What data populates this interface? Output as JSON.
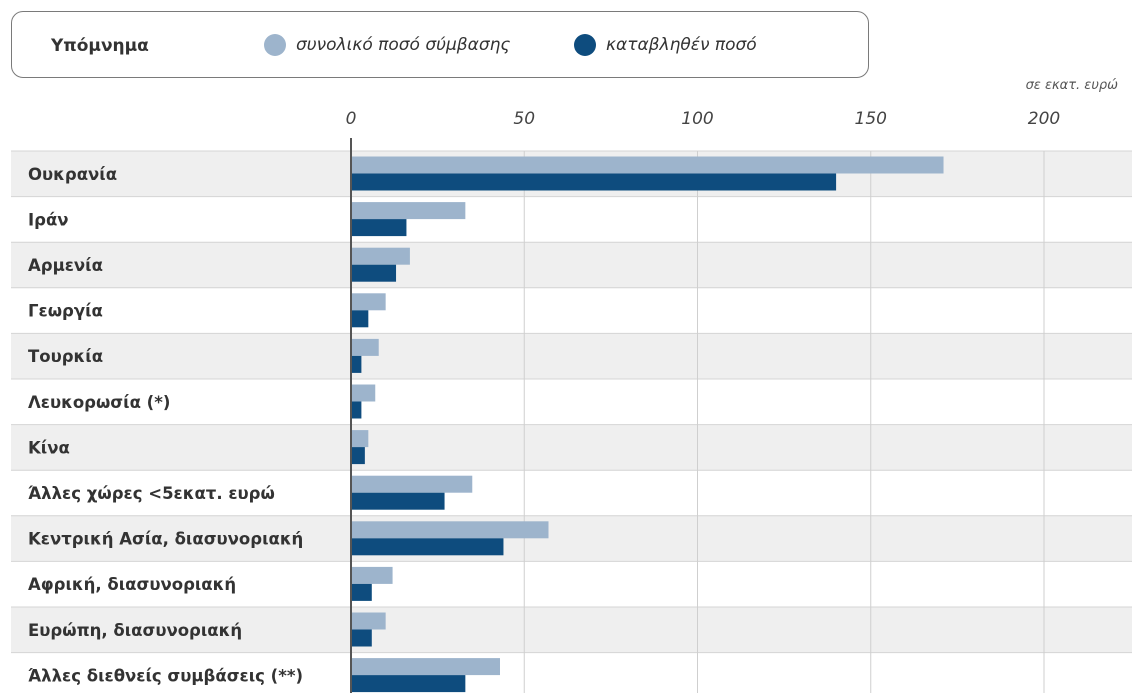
{
  "legend": {
    "title": "Υπόμνημα",
    "items": [
      {
        "label": "συνολικό ποσό σύμβασης",
        "color": "#9db4cc"
      },
      {
        "label": "καταβληθέν ποσό",
        "color": "#0e4c7e"
      }
    ]
  },
  "unit_label": "σε εκατ. ευρώ",
  "chart_data": {
    "type": "bar",
    "orientation": "horizontal",
    "title": "",
    "xlabel": "σε εκατ. ευρώ",
    "ylabel": "",
    "xlim": [
      0,
      225
    ],
    "ticks": [
      0,
      50,
      100,
      150,
      200
    ],
    "tick_labels": [
      "0",
      "50",
      "100",
      "150",
      "200"
    ],
    "grid": true,
    "legend_position": "top",
    "categories": [
      "Ουκρανία",
      "Ιράν",
      "Αρμενία",
      "Γεωργία",
      "Τουρκία",
      "Λευκορωσία (*)",
      "Κίνα",
      "Άλλες χώρες <5εκατ. ευρώ",
      "Κεντρική Ασία, διασυνοριακή",
      "Αφρική, διασυνοριακή",
      "Ευρώπη, διασυνοριακή",
      "Άλλες διεθνείς συμβάσεις (**)"
    ],
    "series": [
      {
        "name": "συνολικό ποσό σύμβασης",
        "color": "#9db4cc",
        "values": [
          171,
          33,
          17,
          10,
          8,
          7,
          5,
          35,
          57,
          12,
          10,
          43
        ]
      },
      {
        "name": "καταβληθέν ποσό",
        "color": "#0e4c7e",
        "values": [
          140,
          16,
          13,
          5,
          3,
          3,
          4,
          27,
          44,
          6,
          6,
          33
        ]
      }
    ]
  }
}
